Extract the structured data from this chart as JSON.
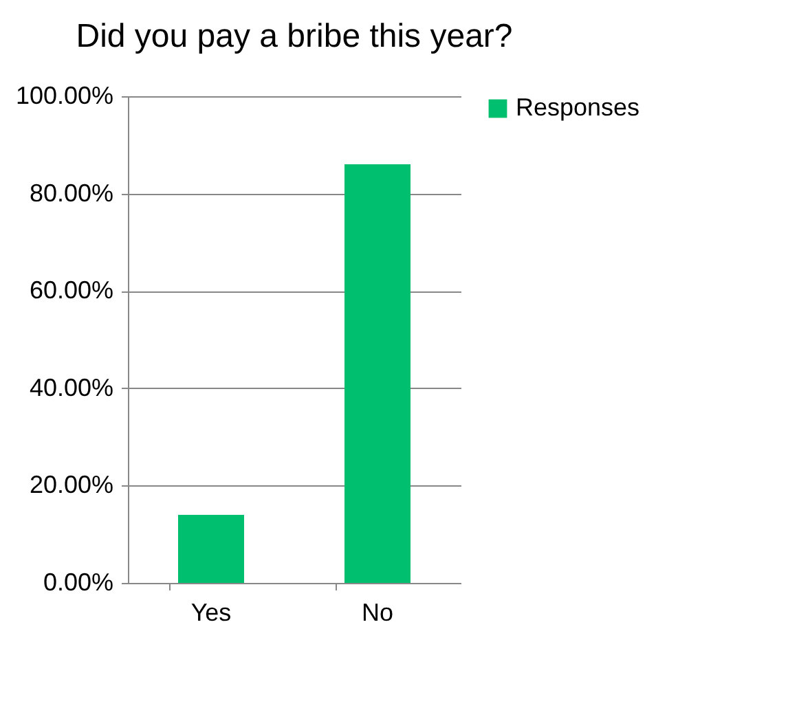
{
  "chart_data": {
    "type": "bar",
    "title": "Did you pay a bribe this year?",
    "categories": [
      "Yes",
      "No"
    ],
    "series": [
      {
        "name": "Responses",
        "color": "#00c070",
        "values": [
          14,
          86
        ]
      }
    ],
    "ylim": [
      0,
      100
    ],
    "yticks": [
      {
        "value": 0,
        "label": "0.00%"
      },
      {
        "value": 20,
        "label": "20.00%"
      },
      {
        "value": 40,
        "label": "40.00%"
      },
      {
        "value": 60,
        "label": "60.00%"
      },
      {
        "value": 80,
        "label": "80.00%"
      },
      {
        "value": 100,
        "label": "100.00%"
      }
    ],
    "grid": "y",
    "legend": "right"
  }
}
